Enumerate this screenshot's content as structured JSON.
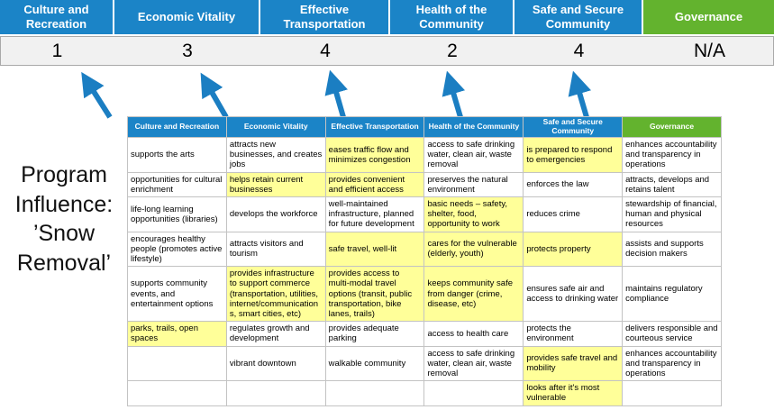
{
  "colors": {
    "header_blue": "#1b84c7",
    "header_green": "#63b32e",
    "highlight_yellow": "#ffff99",
    "score_band_bg": "#f1f1f1",
    "arrow_blue": "#1b7ec2",
    "table_border": "#c3c3c3"
  },
  "title": "Program Influence: ’Snow Removal’",
  "pillars": [
    {
      "label": "Culture and Recreation",
      "score": "1",
      "color": "blue"
    },
    {
      "label": "Economic Vitality",
      "score": "3",
      "color": "blue"
    },
    {
      "label": "Effective Transportation",
      "score": "4",
      "color": "blue"
    },
    {
      "label": "Health of the Community",
      "score": "2",
      "color": "blue"
    },
    {
      "label": "Safe and Secure Community",
      "score": "4",
      "color": "blue"
    },
    {
      "label": "Governance",
      "score": "N/A",
      "color": "green"
    }
  ],
  "matrix": {
    "headers": [
      {
        "label": "Culture and Recreation",
        "color": "blue"
      },
      {
        "label": "Economic Vitality",
        "color": "blue"
      },
      {
        "label": "Effective Transportation",
        "color": "blue"
      },
      {
        "label": "Health of the Community",
        "color": "blue"
      },
      {
        "label": "Safe and Secure Community",
        "color": "blue"
      },
      {
        "label": "Governance",
        "color": "green"
      }
    ],
    "rows": [
      [
        {
          "text": "supports the arts",
          "highlight": false
        },
        {
          "text": "attracts new businesses, and creates jobs",
          "highlight": false
        },
        {
          "text": "eases traffic flow and minimizes congestion",
          "highlight": true
        },
        {
          "text": "access to safe drinking water, clean air, waste removal",
          "highlight": false
        },
        {
          "text": "is prepared to respond to emergencies",
          "highlight": true
        },
        {
          "text": "enhances accountability and transparency in operations",
          "highlight": false
        }
      ],
      [
        {
          "text": "opportunities for cultural enrichment",
          "highlight": false
        },
        {
          "text": "helps retain current businesses",
          "highlight": true
        },
        {
          "text": "provides convenient and efficient access",
          "highlight": true
        },
        {
          "text": "preserves the natural environment",
          "highlight": false
        },
        {
          "text": "enforces the law",
          "highlight": false
        },
        {
          "text": "attracts, develops and retains talent",
          "highlight": false
        }
      ],
      [
        {
          "text": "life-long learning opportunities (libraries)",
          "highlight": false
        },
        {
          "text": "develops the workforce",
          "highlight": false
        },
        {
          "text": "well-maintained infrastructure, planned for future development",
          "highlight": false
        },
        {
          "text": "basic needs – safety, shelter, food, opportunity to work",
          "highlight": true
        },
        {
          "text": "reduces crime",
          "highlight": false
        },
        {
          "text": "stewardship of financial, human and physical resources",
          "highlight": false
        }
      ],
      [
        {
          "text": "encourages healthy people (promotes active lifestyle)",
          "highlight": false
        },
        {
          "text": "attracts visitors and tourism",
          "highlight": false
        },
        {
          "text": "safe travel, well-lit",
          "highlight": true
        },
        {
          "text": "cares for the vulnerable (elderly, youth)",
          "highlight": true
        },
        {
          "text": "protects property",
          "highlight": true
        },
        {
          "text": "assists and supports decision makers",
          "highlight": false
        }
      ],
      [
        {
          "text": "supports community events, and entertainment options",
          "highlight": false
        },
        {
          "text": "provides infrastructure to support commerce (transportation, utilities, internet/communications, smart cities, etc)",
          "highlight": true
        },
        {
          "text": "provides access to multi-modal travel options (transit, public transportation, bike lanes, trails)",
          "highlight": true
        },
        {
          "text": "keeps community safe from danger (crime, disease, etc)",
          "highlight": true
        },
        {
          "text": "ensures safe air and access to drinking water",
          "highlight": false
        },
        {
          "text": "maintains regulatory compliance",
          "highlight": false
        }
      ],
      [
        {
          "text": "parks, trails, open spaces",
          "highlight": true
        },
        {
          "text": "regulates growth and development",
          "highlight": false
        },
        {
          "text": "provides adequate parking",
          "highlight": false
        },
        {
          "text": "access to health care",
          "highlight": false
        },
        {
          "text": "protects the environment",
          "highlight": false
        },
        {
          "text": "delivers responsible and courteous service",
          "highlight": false
        }
      ],
      [
        {
          "text": "",
          "highlight": false
        },
        {
          "text": "vibrant downtown",
          "highlight": false
        },
        {
          "text": "walkable community",
          "highlight": false
        },
        {
          "text": "access to safe drinking water, clean air, waste removal",
          "highlight": false
        },
        {
          "text": "provides safe travel and mobility",
          "highlight": true
        },
        {
          "text": "enhances accountability and transparency in operations",
          "highlight": false
        }
      ],
      [
        {
          "text": "",
          "highlight": false
        },
        {
          "text": "",
          "highlight": false
        },
        {
          "text": "",
          "highlight": false
        },
        {
          "text": "",
          "highlight": false
        },
        {
          "text": "looks after it's most vulnerable",
          "highlight": true
        },
        {
          "text": "",
          "highlight": false
        }
      ]
    ]
  }
}
